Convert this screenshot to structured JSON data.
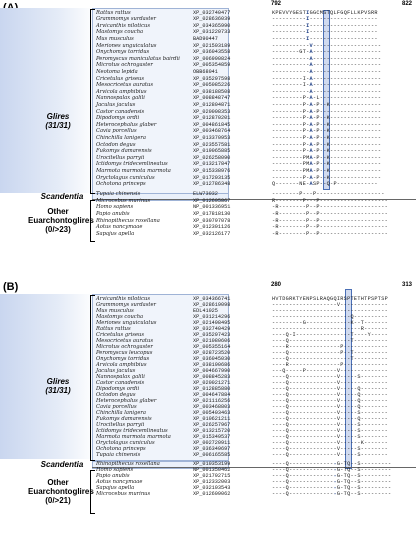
{
  "panelA": {
    "label": "(A)",
    "pos_start": "792",
    "pos_end": "822",
    "glires_label": "Glires",
    "glires_count": "(31/31)",
    "scandentia_label": "Scandentia",
    "other_label_1": "Other",
    "other_label_2": "Euarchontoglires",
    "other_count": "(0/>23)",
    "rows": [
      {
        "sp": "Rattus rattus",
        "acc": "XP_032740477",
        "seq": "KPEVVYGEST",
        "hl": "I",
        "tail": "GGCMSTQLFGQFLLKPVSRR"
      },
      {
        "sp": "Grammomys surdaster",
        "acc": "XP_028636039",
        "seq": "----------",
        "hl": "I",
        "tail": "--------------------"
      },
      {
        "sp": "Arvicanthis niloticus",
        "acc": "XP_034365990",
        "seq": "----------",
        "hl": "I",
        "tail": "--------------------"
      },
      {
        "sp": "Mastomys coucha",
        "acc": "XP_031220733",
        "seq": "----------",
        "hl": "I",
        "tail": "--------------------"
      },
      {
        "sp": "Mus musculus",
        "acc": "BAD90447",
        "seq": "----------",
        "hl": "I",
        "tail": "--------------------"
      },
      {
        "sp": "Meriones unguiculatus",
        "acc": "XP_021503189",
        "seq": "-----------",
        "hl": "V",
        "tail": "--------------------"
      },
      {
        "sp": "Onychomys torridus",
        "acc": "XP_036043558",
        "seq": "--------GT-",
        "hl": "A",
        "tail": "--------------------"
      },
      {
        "sp": "Peromyscus maniculatus bairdii",
        "acc": "XP_006990824",
        "seq": "-----------",
        "hl": "A",
        "tail": "--------------------"
      },
      {
        "sp": "Microtus ochrogaster",
        "acc": "XP_005354859",
        "seq": "-----------",
        "hl": "A",
        "tail": "--------------------"
      },
      {
        "sp": "Neotoma lepida",
        "acc": "OBB68041",
        "seq": "-----------",
        "hl": "A",
        "tail": "--------------------"
      },
      {
        "sp": "Cricetulus griseus",
        "acc": "XP_035297598",
        "seq": "---------I-",
        "hl": "A",
        "tail": "--------------------"
      },
      {
        "sp": "Mesocricetus auratus",
        "acc": "XP_005085226",
        "seq": "---------I-",
        "hl": "A",
        "tail": "--------------------"
      },
      {
        "sp": "Arvicola amphibius",
        "acc": "XP_038188508",
        "seq": "-----------",
        "hl": "A",
        "tail": "--------------------"
      },
      {
        "sp": "Nannospalax galili",
        "acc": "XP_008848747",
        "seq": "---------P-",
        "hl": "A",
        "tail": "-L------------------"
      },
      {
        "sp": "Jaculus jaculus",
        "acc": "XP_012804871",
        "seq": "---------P-",
        "hl": "A",
        "tail": "-P--K---------------"
      },
      {
        "sp": "Castor canadensis",
        "acc": "XP_020008353",
        "seq": "---------P-",
        "hl": "A",
        "tail": "-P------------------"
      },
      {
        "sp": "Dipodomys ordii",
        "acc": "XP_012870201",
        "seq": "---------P-",
        "hl": "A",
        "tail": "-P--K---------------"
      },
      {
        "sp": "Heterocephalus glaber",
        "acc": "XP_004861845",
        "seq": "---------P-",
        "hl": "A",
        "tail": "-P--K---------------"
      },
      {
        "sp": "Cavia porcellus",
        "acc": "XP_003468764",
        "seq": "---------P-",
        "hl": "A",
        "tail": "-P--K---------------"
      },
      {
        "sp": "Chinchilla lanigera",
        "acc": "XP_013370953",
        "seq": "---------P-",
        "hl": "A",
        "tail": "-P--K---------------"
      },
      {
        "sp": "Octodon degus",
        "acc": "XP_023557581",
        "seq": "---------P-",
        "hl": "A",
        "tail": "-P--K---------------"
      },
      {
        "sp": "Fukomys damarensis",
        "acc": "XP_019065885",
        "seq": "---------P-",
        "hl": "A",
        "tail": "-P--K---------------"
      },
      {
        "sp": "Urocitellus parryii",
        "acc": "XP_026258090",
        "seq": "---------PM",
        "hl": "A",
        "tail": "-P--K---------------"
      },
      {
        "sp": "Ictidomys tridecemlineatus",
        "acc": "XP_013217847",
        "seq": "---------PM",
        "hl": "A",
        "tail": "-P--K---------------"
      },
      {
        "sp": "Marmota marmota marmota",
        "acc": "XP_015338976",
        "seq": "---------PM",
        "hl": "A",
        "tail": "-P--K---------------"
      },
      {
        "sp": "Oryctolagus cuniculus",
        "acc": "XP_017203135",
        "seq": "---------P-",
        "hl": "A",
        "tail": "-P--K---------------"
      },
      {
        "sp": "Ochotona princeps",
        "acc": "XP_012786348",
        "seq": "Q-------NE-",
        "hl": "A",
        "tail": "SP--Q-P------------"
      },
      {
        "sp": "Tupaia chinensis",
        "acc": "ELW73032",
        "seq": "--------P--",
        "hl": "",
        "tail": "-P--------------------"
      },
      {
        "sp": "Microcebus murinus",
        "acc": "XP_012605867",
        "seq": "R--------P--",
        "hl": "",
        "tail": "-P--------------------"
      },
      {
        "sp": "Homo sapiens",
        "acc": "NP_001336951",
        "seq": "-R--------P-",
        "hl": "",
        "tail": "-P--------------------"
      },
      {
        "sp": "Papio anubis",
        "acc": "XP_017818130",
        "seq": "-R--------P-",
        "hl": "",
        "tail": "-P--------------------"
      },
      {
        "sp": "Rhinopithecus roxellana",
        "acc": "XP_030797078",
        "seq": "-R--------P-",
        "hl": "",
        "tail": "-P--------------------"
      },
      {
        "sp": "Aotus nancymaae",
        "acc": "XP_012301126",
        "seq": "-R--------P-",
        "hl": "",
        "tail": "-P--------------------"
      },
      {
        "sp": "Sapajus apella",
        "acc": "XP_032126177",
        "seq": "-R--------P-",
        "hl": "",
        "tail": "-P--------------------"
      }
    ]
  },
  "panelB": {
    "label": "(B)",
    "pos_start": "280",
    "pos_end": "313",
    "glires_label": "Glires",
    "glires_count": "(31/31)",
    "scandentia_label": "Scandentia",
    "other_label_1": "Other",
    "other_label_2": "Euarchontoglires",
    "other_count": "(0/>21)",
    "rows": [
      {
        "sp": "Arvicanthis niloticus",
        "acc": "XP_034366741",
        "seq": "HVTDGRKTYENPSLRAQG",
        "hl": "",
        "tail": "QIRSPTETHTPSPTSP"
      },
      {
        "sp": "Grammomys surdaster",
        "acc": "XP_028619098",
        "seq": "------------------",
        "hl": "",
        "tail": "-V--------------"
      },
      {
        "sp": "Mus musculus",
        "acc": "EDL41025",
        "seq": "------------------",
        "hl": "",
        "tail": "----------------"
      },
      {
        "sp": "Mastomys coucha",
        "acc": "XP_031214296",
        "seq": "------------------",
        "hl": "",
        "tail": "-----Q----------"
      },
      {
        "sp": "Meriones unguiculatus",
        "acc": "XP_021498495",
        "seq": "---------G--------",
        "hl": "",
        "tail": "-----K--T-------"
      },
      {
        "sp": "Rattus rattus",
        "acc": "XP_032740429",
        "seq": "------------------",
        "hl": "",
        "tail": "--------R-------"
      },
      {
        "sp": "Cricetulus griseus",
        "acc": "XP_035297423",
        "seq": "----Q-I-----------",
        "hl": "",
        "tail": "-----T----Y-----"
      },
      {
        "sp": "Mesocricetus auratus",
        "acc": "XP_021080606",
        "seq": "----Q-------------",
        "hl": "",
        "tail": "-----T----------"
      },
      {
        "sp": "Microtus ochrogaster",
        "acc": "XP_005355164",
        "seq": "----R-------------",
        "hl": "",
        "tail": "--P-------------"
      },
      {
        "sp": "Peromyscus leucopus",
        "acc": "XP_028723520",
        "seq": "----Q-------------",
        "hl": "",
        "tail": "--P--T----------"
      },
      {
        "sp": "Onychomys torridus",
        "acc": "XP_036045030",
        "seq": "----Q-------------",
        "hl": "",
        "tail": "-----T----------"
      },
      {
        "sp": "Arvicola amphibius",
        "acc": "XP_038190686",
        "seq": "----R-------------",
        "hl": "",
        "tail": "--P-------------"
      },
      {
        "sp": "Jaculus jaculus",
        "acc": "XP_004667990",
        "seq": "---Q-----P--------",
        "hl": "",
        "tail": "-V--------------"
      },
      {
        "sp": "Nannospalax galili",
        "acc": "XP_008845283",
        "seq": "----Q-------------",
        "hl": "",
        "tail": "-V-----S--------"
      },
      {
        "sp": "Castor canadensis",
        "acc": "XP_020021271",
        "seq": "----Q-------------",
        "hl": "",
        "tail": "-V--------------"
      },
      {
        "sp": "Dipodomys ordii",
        "acc": "XP_012885880",
        "seq": "----Q-------------",
        "hl": "",
        "tail": "-V-----Q--------"
      },
      {
        "sp": "Octodon degus",
        "acc": "XP_004647884",
        "seq": "----Q-------------",
        "hl": "",
        "tail": "-V-----Q--------"
      },
      {
        "sp": "Heterocephalus glaber",
        "acc": "XP_021116256",
        "seq": "----Q-------------",
        "hl": "",
        "tail": "-V-----Q--------"
      },
      {
        "sp": "Cavia porcellus",
        "acc": "XP_003468803",
        "seq": "----Q-------------",
        "hl": "",
        "tail": "-V-----Q--------"
      },
      {
        "sp": "Chinchilla lanigera",
        "acc": "XP_005403463",
        "seq": "----Q-------------",
        "hl": "",
        "tail": "-V-----S--------"
      },
      {
        "sp": "Fukomys damarensis",
        "acc": "XP_010621211",
        "seq": "----Q-------------",
        "hl": "",
        "tail": "-V-----Q--------"
      },
      {
        "sp": "Urocitellus parryii",
        "acc": "XP_026257967",
        "seq": "----Q-------------",
        "hl": "",
        "tail": "-V-----S--------"
      },
      {
        "sp": "Ictidomys tridecemlineatus",
        "acc": "XP_013215720",
        "seq": "----Q-------------",
        "hl": "",
        "tail": "-V-----S--------"
      },
      {
        "sp": "Marmota marmota marmota",
        "acc": "XP_015349537",
        "seq": "----Q-------------",
        "hl": "",
        "tail": "-V-----S--------"
      },
      {
        "sp": "Oryctolagus cuniculus",
        "acc": "XP_002720911",
        "seq": "----Q-------------",
        "hl": "",
        "tail": "-V------K-------"
      },
      {
        "sp": "Ochotona princeps",
        "acc": "XP_036349697",
        "seq": "----Q-------------",
        "hl": "",
        "tail": "-V-----S--------"
      },
      {
        "sp": "Tupaia chinensis",
        "acc": "XP_006165585",
        "seq": "----Q-------------",
        "hl": "",
        "tail": "-V-----S--------"
      },
      {
        "sp": "Rhinopithecus roxellana",
        "acc": "XP_010353199",
        "seq": "----Q-------------",
        "hl": "-",
        "tail": "G-TQ--S---------"
      },
      {
        "sp": "Homo sapiens",
        "acc": "NP_001350462",
        "seq": "----Q-------------",
        "hl": "-",
        "tail": "G-TQ--S---------"
      },
      {
        "sp": "Papio anubis",
        "acc": "XP_021792715",
        "seq": "----Q-------------",
        "hl": "-",
        "tail": "G-TQ--S---------"
      },
      {
        "sp": "Aotus nancymaae",
        "acc": "XP_012332003",
        "seq": "----Q-------------",
        "hl": "-",
        "tail": "G-TQ--S---------"
      },
      {
        "sp": "Sapajus apella",
        "acc": "XP_032103543",
        "seq": "----Q-------------",
        "hl": "-",
        "tail": "G-TQ--S---------"
      },
      {
        "sp": "Microcebus murinus",
        "acc": "XP_012609062",
        "seq": "----Q-------------",
        "hl": "-",
        "tail": "G-TQ--S---------"
      }
    ]
  }
}
